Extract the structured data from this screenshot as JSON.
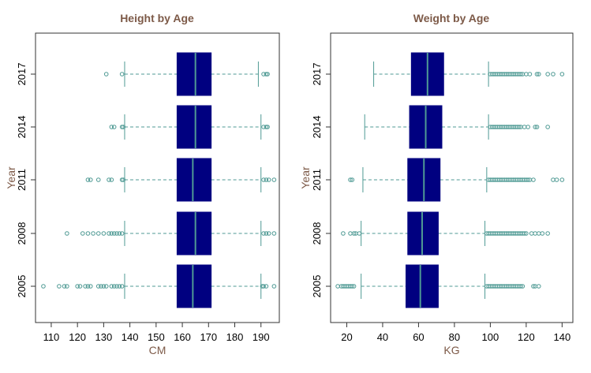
{
  "chart_data": [
    {
      "type": "boxplot",
      "orientation": "horizontal",
      "title": "Height by Age",
      "xlabel": "CM",
      "ylabel": "Year",
      "xlim": [
        104,
        197
      ],
      "xticks": [
        110,
        120,
        130,
        140,
        150,
        160,
        170,
        180,
        190
      ],
      "categories": [
        "2005",
        "2008",
        "2011",
        "2014",
        "2017"
      ],
      "boxes": [
        {
          "year": "2005",
          "whisker_low": 138,
          "q1": 158,
          "median": 164,
          "q3": 171,
          "whisker_high": 190,
          "outliers": [
            107,
            113,
            115,
            116,
            120,
            121,
            123,
            124,
            125,
            128,
            129,
            130,
            131,
            133,
            134,
            135,
            136,
            137,
            190.5,
            191,
            192,
            195
          ]
        },
        {
          "year": "2008",
          "whisker_low": 138,
          "q1": 158,
          "median": 165,
          "q3": 171,
          "whisker_high": 190,
          "outliers": [
            116,
            122,
            124,
            126,
            128,
            130,
            132,
            133,
            134,
            135,
            136,
            137,
            191,
            192,
            193,
            195
          ]
        },
        {
          "year": "2011",
          "whisker_low": 138,
          "q1": 158,
          "median": 164,
          "q3": 171,
          "whisker_high": 190,
          "outliers": [
            124,
            125,
            128,
            132,
            133,
            137,
            137.5,
            191,
            192,
            193,
            195
          ]
        },
        {
          "year": "2014",
          "whisker_low": 138,
          "q1": 158,
          "median": 165,
          "q3": 171,
          "whisker_high": 190,
          "outliers": [
            133,
            134,
            137,
            137.5,
            191,
            192,
            192.5
          ]
        },
        {
          "year": "2017",
          "whisker_low": 138,
          "q1": 158,
          "median": 165,
          "q3": 171,
          "whisker_high": 189,
          "outliers": [
            131,
            137,
            191,
            192,
            192.5
          ]
        }
      ]
    },
    {
      "type": "boxplot",
      "orientation": "horizontal",
      "title": "Weight by Age",
      "xlabel": "KG",
      "ylabel": "Year",
      "xlim": [
        11,
        146
      ],
      "xticks": [
        20,
        40,
        60,
        80,
        100,
        120,
        140
      ],
      "categories": [
        "2005",
        "2008",
        "2011",
        "2014",
        "2017"
      ],
      "boxes": [
        {
          "year": "2005",
          "whisker_low": 28,
          "q1": 53,
          "median": 61,
          "q3": 71,
          "whisker_high": 97,
          "outliers": [
            15,
            17,
            18,
            19,
            20,
            21,
            22,
            23,
            24,
            98,
            99,
            100,
            101,
            102,
            103,
            104,
            105,
            106,
            107,
            108,
            109,
            110,
            111,
            112,
            113,
            114,
            115,
            116,
            117,
            118,
            124,
            125,
            127
          ]
        },
        {
          "year": "2008",
          "whisker_low": 28,
          "q1": 54,
          "median": 62,
          "q3": 71,
          "whisker_high": 97,
          "outliers": [
            18,
            22,
            24,
            25,
            27,
            98,
            99,
            100,
            101,
            102,
            103,
            104,
            105,
            106,
            107,
            108,
            109,
            110,
            111,
            112,
            113,
            114,
            115,
            116,
            117,
            118,
            119,
            120,
            123,
            125,
            127,
            129,
            132
          ]
        },
        {
          "year": "2011",
          "whisker_low": 29,
          "q1": 54,
          "median": 63,
          "q3": 72,
          "whisker_high": 98,
          "outliers": [
            22,
            23,
            99,
            100,
            101,
            102,
            103,
            104,
            105,
            106,
            107,
            108,
            109,
            110,
            111,
            112,
            113,
            114,
            115,
            116,
            117,
            118,
            119,
            120,
            121,
            122,
            124,
            135,
            137,
            140
          ]
        },
        {
          "year": "2014",
          "whisker_low": 30,
          "q1": 55,
          "median": 64,
          "q3": 73,
          "whisker_high": 99,
          "outliers": [
            100,
            101,
            102,
            103,
            104,
            105,
            106,
            107,
            108,
            109,
            110,
            111,
            112,
            113,
            114,
            115,
            116,
            117,
            119,
            121,
            125,
            126,
            132
          ]
        },
        {
          "year": "2017",
          "whisker_low": 35,
          "q1": 56,
          "median": 65,
          "q3": 74,
          "whisker_high": 99,
          "outliers": [
            100,
            101,
            102,
            103,
            104,
            105,
            106,
            107,
            108,
            109,
            110,
            111,
            112,
            113,
            114,
            115,
            116,
            117,
            118,
            120,
            122,
            126,
            127,
            132,
            135,
            140
          ]
        }
      ]
    }
  ],
  "colors": {
    "box_fill": "#000080",
    "median_line": "#4f9a94",
    "whisker": "#4f9a94",
    "outlier": "#4f9a94",
    "title_text": "#7d5a48",
    "axis_label_text": "#7d5a48"
  }
}
